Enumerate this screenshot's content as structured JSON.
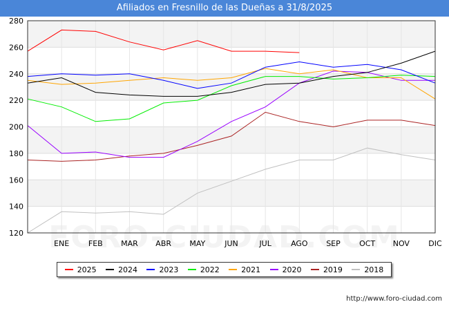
{
  "title": "Afiliados en Fresnillo de las Dueñas a 31/8/2025",
  "source_text": "http://www.foro-ciudad.com",
  "watermark_text": "FORO-CIUDAD.COM",
  "chart_data": {
    "type": "line",
    "x": [
      "",
      "ENE",
      "FEB",
      "MAR",
      "ABR",
      "MAY",
      "JUN",
      "JUL",
      "AGO",
      "SEP",
      "OCT",
      "NOV",
      "DIC"
    ],
    "ylim": [
      120,
      280
    ],
    "yticks": [
      120,
      140,
      160,
      180,
      200,
      220,
      240,
      260,
      280
    ],
    "grid": true,
    "legend_position": "bottom",
    "series": [
      {
        "name": "2025",
        "color": "#ff0000",
        "values": [
          257,
          273,
          272,
          264,
          258,
          265,
          257,
          257,
          256,
          null,
          null,
          null,
          null
        ]
      },
      {
        "name": "2024",
        "color": "#000000",
        "values": [
          233,
          237,
          226,
          224,
          223,
          223,
          226,
          232,
          233,
          238,
          241,
          248,
          257
        ]
      },
      {
        "name": "2023",
        "color": "#0000ff",
        "values": [
          238,
          240,
          239,
          240,
          235,
          229,
          233,
          245,
          249,
          245,
          247,
          243,
          233
        ]
      },
      {
        "name": "2022",
        "color": "#00ee00",
        "values": [
          221,
          215,
          204,
          206,
          218,
          220,
          231,
          238,
          238,
          236,
          237,
          239,
          238
        ]
      },
      {
        "name": "2021",
        "color": "#ffa500",
        "values": [
          235,
          232,
          233,
          235,
          237,
          235,
          237,
          244,
          240,
          243,
          237,
          237,
          221
        ]
      },
      {
        "name": "2020",
        "color": "#9900ff",
        "values": [
          201,
          180,
          181,
          177,
          177,
          189,
          204,
          215,
          233,
          242,
          241,
          235,
          235
        ]
      },
      {
        "name": "2019",
        "color": "#aa2222",
        "values": [
          175,
          174,
          175,
          178,
          180,
          186,
          193,
          211,
          204,
          200,
          205,
          205,
          201
        ]
      },
      {
        "name": "2018",
        "color": "#c0c0c0",
        "values": [
          120,
          136,
          135,
          136,
          134,
          150,
          159,
          168,
          175,
          175,
          184,
          179,
          175
        ]
      }
    ]
  }
}
